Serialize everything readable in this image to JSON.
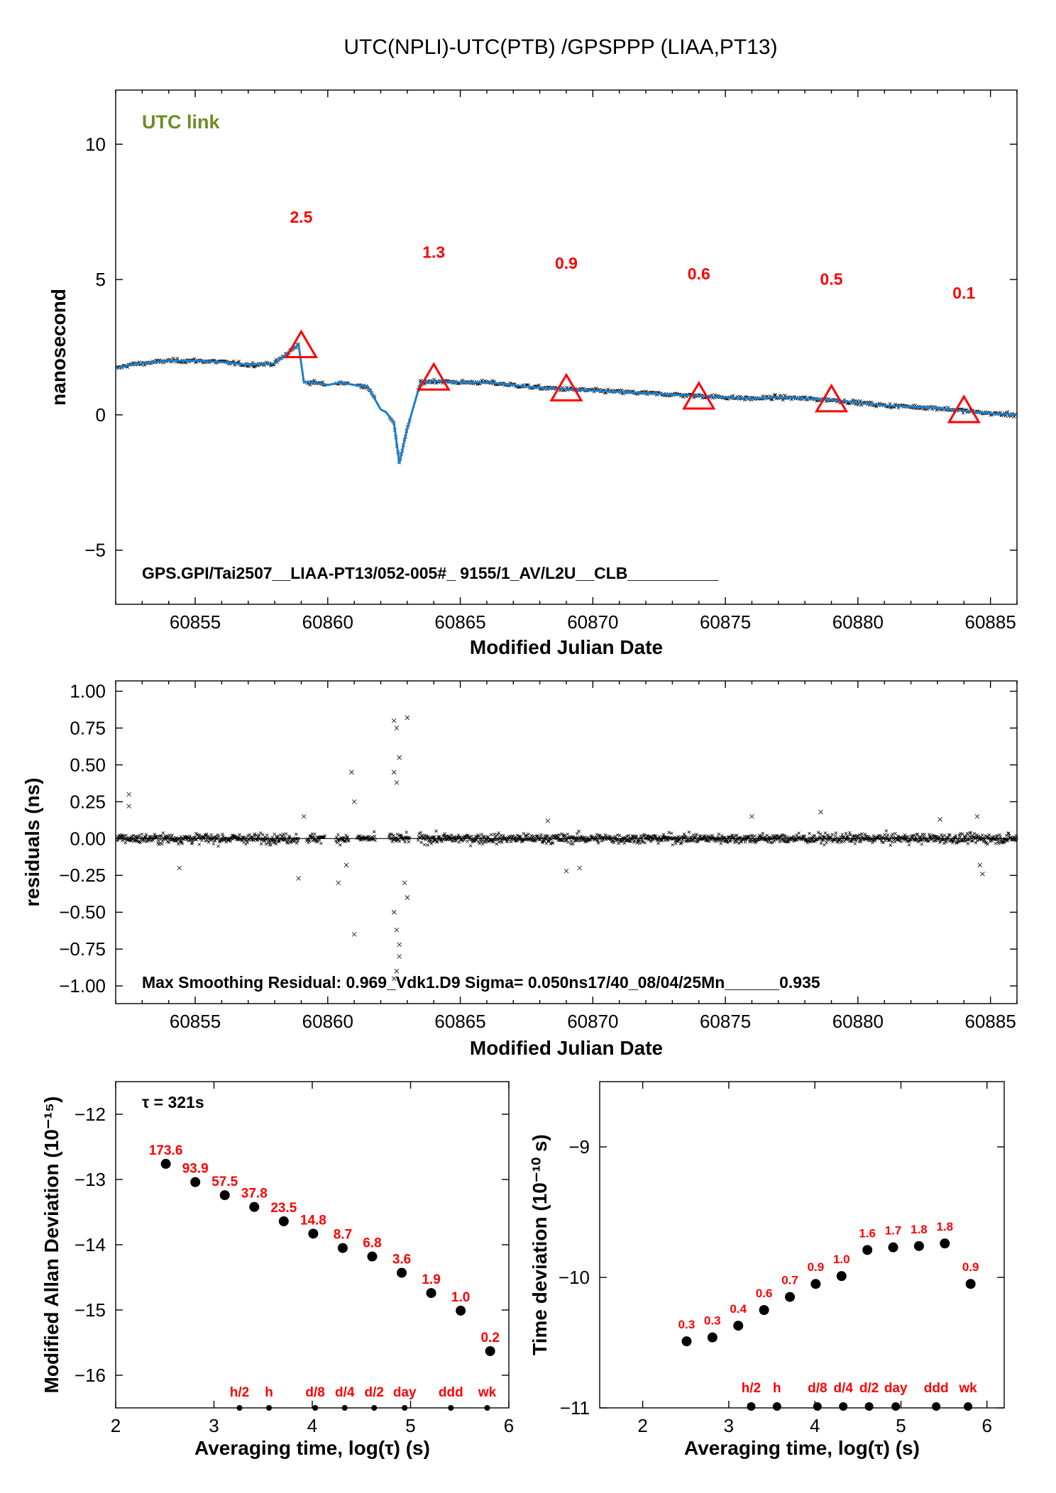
{
  "title": "UTC(NPLI)-UTC(PTB)  /GPSPPP  (LIAA,PT13)",
  "colors": {
    "series": "#1e7ec8",
    "points": "#000000",
    "markers": "#ff0000",
    "link_label": "#6b8e23"
  },
  "chart_data": [
    {
      "id": "time-series",
      "type": "scatter",
      "title": "UTC(NPLI)-UTC(PTB)  /GPSPPP  (LIAA,PT13)",
      "xlabel": "Modified Julian Date",
      "ylabel": "nanosecond",
      "xlim": [
        60852,
        60886
      ],
      "ylim": [
        -7,
        12
      ],
      "xticks": [
        60855,
        60860,
        60865,
        60870,
        60875,
        60880,
        60885
      ],
      "yticks": [
        -5,
        0,
        5,
        10
      ],
      "ytick_labels": [
        "−5",
        "0",
        "5",
        "10"
      ],
      "link_label": "UTC link",
      "footer": "GPS.GPI/Tai2507__LIAA-PT13/052-005#_  9155/1_AV/L2U__CLB__________",
      "smoothed_curve": {
        "x": [
          60852,
          60852.5,
          60853,
          60854,
          60855,
          60856,
          60857,
          60858,
          60858.9,
          60859.1,
          60859.5,
          60860,
          60860.5,
          60861,
          60861.5,
          60862,
          60862.2,
          60862.5,
          60862.7,
          60863,
          60863.5,
          60864,
          60865,
          60866,
          60867,
          60868,
          60869,
          60870,
          60871,
          60872,
          60873,
          60874,
          60875,
          60876,
          60877,
          60878,
          60879,
          60880,
          60881,
          60882,
          60883,
          60884,
          60885,
          60886
        ],
        "y": [
          1.7,
          1.85,
          1.9,
          2.0,
          2.0,
          1.95,
          1.85,
          1.9,
          2.6,
          1.2,
          1.2,
          1.1,
          1.2,
          1.1,
          1.05,
          0.2,
          0.1,
          -0.3,
          -1.8,
          -0.5,
          1.2,
          1.25,
          1.2,
          1.2,
          1.1,
          1.0,
          0.95,
          0.9,
          0.85,
          0.8,
          0.75,
          0.7,
          0.65,
          0.6,
          0.65,
          0.6,
          0.55,
          0.45,
          0.35,
          0.3,
          0.25,
          0.15,
          0.05,
          0.0
        ]
      },
      "markers": [
        {
          "x": 60859.0,
          "y": 2.5,
          "label": "2.5",
          "label_y": 7.1
        },
        {
          "x": 60864.0,
          "y": 1.3,
          "label": "1.3",
          "label_y": 5.8
        },
        {
          "x": 60869.0,
          "y": 0.9,
          "label": "0.9",
          "label_y": 5.4
        },
        {
          "x": 60874.0,
          "y": 0.6,
          "label": "0.6",
          "label_y": 5.0
        },
        {
          "x": 60879.0,
          "y": 0.5,
          "label": "0.5",
          "label_y": 4.8
        },
        {
          "x": 60884.0,
          "y": 0.1,
          "label": "0.1",
          "label_y": 4.3
        }
      ]
    },
    {
      "id": "residuals",
      "type": "scatter",
      "xlabel": "Modified Julian Date",
      "ylabel": "residuals (ns)",
      "xlim": [
        60852,
        60886
      ],
      "ylim": [
        -1.12,
        1.07
      ],
      "xticks": [
        60855,
        60860,
        60865,
        60870,
        60875,
        60880,
        60885
      ],
      "yticks": [
        -1.0,
        -0.75,
        -0.5,
        -0.25,
        0.0,
        0.25,
        0.5,
        0.75,
        1.0
      ],
      "ytick_labels": [
        "−1.00",
        "−0.75",
        "−0.50",
        "−0.25",
        "0.00",
        "0.25",
        "0.50",
        "0.75",
        "1.00"
      ],
      "footer": "Max Smoothing Residual: 0.969_Vdk1.D9  Sigma= 0.050ns17/40_08/04/25Mn______0.935",
      "sigma_ns": 0.05,
      "gaps": [
        [
          60858.9,
          60859.2
        ],
        [
          60859.9,
          60860.3
        ],
        [
          60860.8,
          60861.1
        ],
        [
          60861.8,
          60862.3
        ],
        [
          60863.1,
          60863.4
        ]
      ],
      "outliers": [
        {
          "x": 60852.5,
          "y": 0.3
        },
        {
          "x": 60852.5,
          "y": 0.22
        },
        {
          "x": 60854.4,
          "y": -0.2
        },
        {
          "x": 60858.9,
          "y": -0.27
        },
        {
          "x": 60859.1,
          "y": 0.15
        },
        {
          "x": 60860.9,
          "y": 0.45
        },
        {
          "x": 60860.7,
          "y": -0.18
        },
        {
          "x": 60860.4,
          "y": -0.3
        },
        {
          "x": 60861.0,
          "y": 0.25
        },
        {
          "x": 60861.0,
          "y": -0.65
        },
        {
          "x": 60862.5,
          "y": 0.8
        },
        {
          "x": 60862.6,
          "y": 0.75
        },
        {
          "x": 60862.7,
          "y": 0.55
        },
        {
          "x": 60862.5,
          "y": 0.45
        },
        {
          "x": 60862.6,
          "y": 0.38
        },
        {
          "x": 60862.5,
          "y": -0.5
        },
        {
          "x": 60862.6,
          "y": -0.62
        },
        {
          "x": 60862.7,
          "y": -0.8
        },
        {
          "x": 60862.6,
          "y": -0.9
        },
        {
          "x": 60862.5,
          "y": -0.95
        },
        {
          "x": 60862.7,
          "y": -0.72
        },
        {
          "x": 60863.0,
          "y": 0.82
        },
        {
          "x": 60863.0,
          "y": -0.4
        },
        {
          "x": 60862.9,
          "y": -0.3
        },
        {
          "x": 60869.0,
          "y": -0.22
        },
        {
          "x": 60869.5,
          "y": -0.2
        },
        {
          "x": 60868.3,
          "y": 0.12
        },
        {
          "x": 60876.0,
          "y": 0.15
        },
        {
          "x": 60878.6,
          "y": 0.18
        },
        {
          "x": 60883.1,
          "y": 0.13
        },
        {
          "x": 60884.6,
          "y": -0.18
        },
        {
          "x": 60884.7,
          "y": -0.24
        },
        {
          "x": 60884.5,
          "y": 0.15
        }
      ]
    },
    {
      "id": "mdev",
      "type": "scatter",
      "xlabel": "Averaging time, log(τ) (s)",
      "ylabel": "Modified Allan Deviation (10⁻¹⁵)",
      "xlim": [
        2,
        6
      ],
      "ylim": [
        -16.5,
        -11.5
      ],
      "xticks": [
        2,
        3,
        4,
        5,
        6
      ],
      "yticks": [
        -16,
        -15,
        -14,
        -13,
        -12
      ],
      "ytick_labels": [
        "−16",
        "−15",
        "−14",
        "−13",
        "−12"
      ],
      "tau_note": "τ = 321s",
      "x": [
        2.51,
        2.81,
        3.11,
        3.41,
        3.71,
        4.01,
        4.31,
        4.61,
        4.91,
        5.21,
        5.51,
        5.81
      ],
      "y": [
        -12.76,
        -13.04,
        -13.24,
        -13.42,
        -13.64,
        -13.83,
        -14.05,
        -14.18,
        -14.43,
        -14.74,
        -15.01,
        -15.63
      ],
      "labels": [
        "173.6",
        "93.9",
        "57.5",
        "37.8",
        "23.5",
        "14.8",
        "8.7",
        "6.8",
        "3.6",
        "1.9",
        "1.0",
        "0.2"
      ],
      "time_marks": [
        {
          "x": 3.26,
          "label": "h/2"
        },
        {
          "x": 3.56,
          "label": "h"
        },
        {
          "x": 4.03,
          "label": "d/8"
        },
        {
          "x": 4.33,
          "label": "d/4"
        },
        {
          "x": 4.63,
          "label": "d/2"
        },
        {
          "x": 4.94,
          "label": "day"
        },
        {
          "x": 5.41,
          "label": "ddd"
        },
        {
          "x": 5.78,
          "label": "wk"
        }
      ]
    },
    {
      "id": "tdev",
      "type": "scatter",
      "xlabel": "Averaging time, log(τ) (s)",
      "ylabel": "Time deviation (10⁻¹⁰ s)",
      "xlim": [
        1.5,
        6.2
      ],
      "ylim": [
        -11,
        -8.5
      ],
      "xticks": [
        2,
        3,
        4,
        5,
        6
      ],
      "yticks": [
        -11,
        -10,
        -9
      ],
      "ytick_labels": [
        "−11",
        "−10",
        "−9"
      ],
      "x": [
        2.51,
        2.81,
        3.11,
        3.41,
        3.71,
        4.01,
        4.31,
        4.61,
        4.91,
        5.21,
        5.51,
        5.81
      ],
      "y": [
        -10.49,
        -10.46,
        -10.37,
        -10.25,
        -10.15,
        -10.05,
        -9.99,
        -9.79,
        -9.77,
        -9.76,
        -9.74,
        -10.05
      ],
      "labels": [
        "0.3",
        "0.3",
        "0.4",
        "0.6",
        "0.7",
        "0.9",
        "1.0",
        "1.6",
        "1.7",
        "1.8",
        "1.8",
        "0.9"
      ],
      "time_marks": [
        {
          "x": 3.26,
          "label": "h/2"
        },
        {
          "x": 3.56,
          "label": "h"
        },
        {
          "x": 4.03,
          "label": "d/8"
        },
        {
          "x": 4.33,
          "label": "d/4"
        },
        {
          "x": 4.63,
          "label": "d/2"
        },
        {
          "x": 4.94,
          "label": "day"
        },
        {
          "x": 5.41,
          "label": "ddd"
        },
        {
          "x": 5.78,
          "label": "wk"
        }
      ]
    }
  ]
}
